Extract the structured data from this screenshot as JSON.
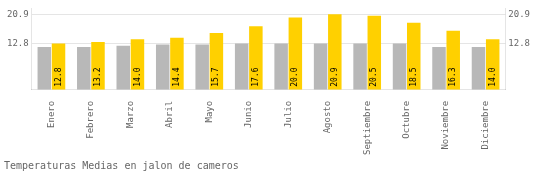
{
  "chart_data": {
    "type": "bar",
    "title": "Temperaturas Medias en jalon de cameros",
    "categories": [
      "Enero",
      "Febrero",
      "Marzo",
      "Abril",
      "Mayo",
      "Junio",
      "Julio",
      "Agosto",
      "Septiembre",
      "Octubre",
      "Noviembre",
      "Diciembre"
    ],
    "series": [
      {
        "color": "#B8B8B8",
        "values": [
          11.8,
          11.8,
          12.2,
          12.5,
          12.5,
          12.8,
          12.8,
          12.8,
          12.8,
          12.8,
          11.8,
          11.8
        ]
      },
      {
        "color": "#FFD000",
        "values": [
          12.8,
          13.2,
          14.0,
          14.4,
          15.7,
          17.6,
          20.0,
          20.9,
          20.5,
          18.5,
          16.3,
          14.0
        ],
        "data_labels": true,
        "value_labels": [
          "12.8",
          "13.2",
          "14.0",
          "14.4",
          "15.7",
          "17.6",
          "20.0",
          "20.9",
          "20.5",
          "18.5",
          "16.3",
          "14.0"
        ]
      }
    ],
    "ylim": [
      0,
      22.5
    ],
    "yticks": [
      12.8,
      20.9
    ],
    "y2lim": [
      0,
      22.5
    ],
    "y2ticks": [
      12.8,
      20.9
    ],
    "grid": true
  }
}
